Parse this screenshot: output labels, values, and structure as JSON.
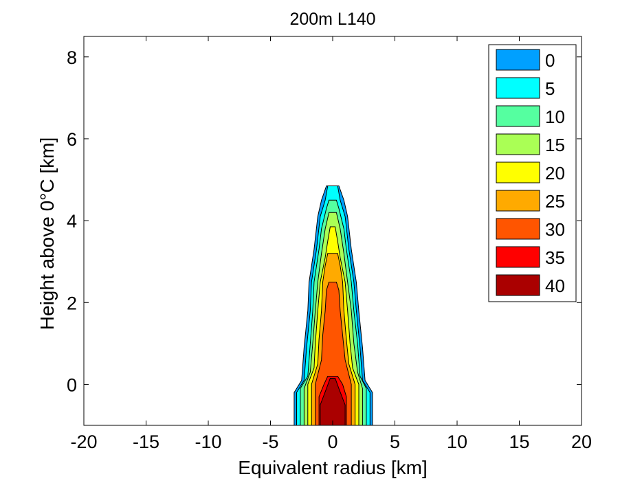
{
  "chart_data": {
    "type": "contour",
    "title": "200m L140",
    "xlabel": "Equivalent radius [km]",
    "ylabel": "Height above 0°C [km]",
    "xlim": [
      -20,
      20
    ],
    "ylim": [
      -1,
      8.5
    ],
    "x_ticks": [
      -20,
      -15,
      -10,
      -5,
      0,
      5,
      10,
      15,
      20
    ],
    "x_tick_labels": [
      "-20",
      "-15",
      "-10",
      "-5",
      "0",
      "5",
      "10",
      "15",
      "20"
    ],
    "y_ticks": [
      0,
      2,
      4,
      6,
      8
    ],
    "y_tick_labels": [
      "0",
      "2",
      "4",
      "6",
      "8"
    ],
    "grid": false,
    "legend_position": "top-right",
    "levels": [
      {
        "label": "0",
        "value": 0,
        "color": "#00A0FF"
      },
      {
        "label": "5",
        "value": 5,
        "color": "#00FFFF"
      },
      {
        "label": "10",
        "value": 10,
        "color": "#55FFA0"
      },
      {
        "label": "15",
        "value": 15,
        "color": "#AAFF55"
      },
      {
        "label": "20",
        "value": 20,
        "color": "#FFFF00"
      },
      {
        "label": "25",
        "value": 25,
        "color": "#FFAA00"
      },
      {
        "label": "30",
        "value": 30,
        "color": "#FF5500"
      },
      {
        "label": "35",
        "value": 35,
        "color": "#FF0000"
      },
      {
        "label": "40",
        "value": 40,
        "color": "#AA0000"
      }
    ],
    "contours": [
      {
        "level": 0,
        "outline": [
          [
            -3.1,
            -1
          ],
          [
            -3.1,
            -0.2
          ],
          [
            -2.5,
            0.1
          ],
          [
            -2.3,
            0.9
          ],
          [
            -2.0,
            1.8
          ],
          [
            -1.9,
            2.5
          ],
          [
            -1.5,
            3.3
          ],
          [
            -1.2,
            4.1
          ],
          [
            -0.9,
            4.5
          ],
          [
            -0.5,
            4.85
          ],
          [
            0.5,
            4.85
          ],
          [
            0.9,
            4.5
          ],
          [
            1.2,
            4.1
          ],
          [
            1.5,
            3.3
          ],
          [
            1.9,
            2.5
          ],
          [
            2.1,
            1.8
          ],
          [
            2.4,
            0.9
          ],
          [
            2.6,
            0.1
          ],
          [
            3.2,
            -0.2
          ],
          [
            3.2,
            -1
          ]
        ]
      },
      {
        "level": 5,
        "outline": [
          [
            -2.9,
            -1
          ],
          [
            -2.9,
            -0.2
          ],
          [
            -2.3,
            0.1
          ],
          [
            -2.1,
            0.9
          ],
          [
            -1.8,
            1.8
          ],
          [
            -1.7,
            2.5
          ],
          [
            -1.3,
            3.3
          ],
          [
            -1.0,
            4.1
          ],
          [
            -0.6,
            4.5
          ],
          [
            -0.4,
            4.85
          ],
          [
            0.4,
            4.85
          ],
          [
            0.6,
            4.5
          ],
          [
            1.0,
            4.1
          ],
          [
            1.3,
            3.3
          ],
          [
            1.7,
            2.5
          ],
          [
            1.9,
            1.8
          ],
          [
            2.2,
            0.9
          ],
          [
            2.4,
            0.1
          ],
          [
            3.0,
            -0.2
          ],
          [
            3.0,
            -1
          ]
        ]
      },
      {
        "level": 10,
        "outline": [
          [
            -2.6,
            -1
          ],
          [
            -2.6,
            -0.1
          ],
          [
            -2.0,
            0.2
          ],
          [
            -1.8,
            1.0
          ],
          [
            -1.6,
            1.8
          ],
          [
            -1.5,
            2.5
          ],
          [
            -1.1,
            3.3
          ],
          [
            -0.9,
            3.8
          ],
          [
            -0.5,
            4.3
          ],
          [
            -0.3,
            4.5
          ],
          [
            0.3,
            4.5
          ],
          [
            0.5,
            4.3
          ],
          [
            0.9,
            3.8
          ],
          [
            1.1,
            3.3
          ],
          [
            1.5,
            2.5
          ],
          [
            1.7,
            1.8
          ],
          [
            2.0,
            1.0
          ],
          [
            2.2,
            0.2
          ],
          [
            2.7,
            -0.1
          ],
          [
            2.7,
            -1
          ]
        ]
      },
      {
        "level": 15,
        "outline": [
          [
            -2.3,
            -1
          ],
          [
            -2.3,
            -0.1
          ],
          [
            -1.8,
            0.3
          ],
          [
            -1.6,
            1.0
          ],
          [
            -1.4,
            1.8
          ],
          [
            -1.2,
            2.5
          ],
          [
            -0.9,
            3.2
          ],
          [
            -0.6,
            3.8
          ],
          [
            -0.3,
            4.2
          ],
          [
            0.3,
            4.2
          ],
          [
            0.6,
            3.8
          ],
          [
            0.9,
            3.2
          ],
          [
            1.2,
            2.5
          ],
          [
            1.5,
            1.8
          ],
          [
            1.7,
            1.0
          ],
          [
            2.0,
            0.3
          ],
          [
            2.4,
            -0.1
          ],
          [
            2.4,
            -1
          ]
        ]
      },
      {
        "level": 20,
        "outline": [
          [
            -2.0,
            -1
          ],
          [
            -2.0,
            0.0
          ],
          [
            -1.5,
            0.4
          ],
          [
            -1.4,
            1.0
          ],
          [
            -1.2,
            1.8
          ],
          [
            -1.0,
            2.5
          ],
          [
            -0.6,
            3.1
          ],
          [
            -0.4,
            3.5
          ],
          [
            -0.2,
            3.85
          ],
          [
            0.2,
            3.85
          ],
          [
            0.4,
            3.5
          ],
          [
            0.6,
            3.1
          ],
          [
            1.0,
            2.5
          ],
          [
            1.2,
            1.8
          ],
          [
            1.4,
            1.0
          ],
          [
            1.6,
            0.4
          ],
          [
            2.1,
            0.0
          ],
          [
            2.1,
            -1
          ]
        ]
      },
      {
        "level": 25,
        "outline": [
          [
            -1.7,
            -1
          ],
          [
            -1.7,
            0.0
          ],
          [
            -1.2,
            0.5
          ],
          [
            -1.1,
            1.1
          ],
          [
            -0.9,
            1.8
          ],
          [
            -0.8,
            2.5
          ],
          [
            -0.6,
            2.9
          ],
          [
            -0.4,
            3.2
          ],
          [
            0.4,
            3.2
          ],
          [
            0.6,
            2.9
          ],
          [
            0.8,
            2.5
          ],
          [
            0.9,
            1.8
          ],
          [
            1.1,
            1.1
          ],
          [
            1.3,
            0.5
          ],
          [
            1.8,
            0.0
          ],
          [
            1.8,
            -1
          ]
        ]
      },
      {
        "level": 30,
        "outline": [
          [
            -1.4,
            -1
          ],
          [
            -1.4,
            0.0
          ],
          [
            -0.9,
            0.6
          ],
          [
            -0.8,
            1.2
          ],
          [
            -0.6,
            1.8
          ],
          [
            -0.5,
            2.3
          ],
          [
            -0.3,
            2.5
          ],
          [
            0.3,
            2.5
          ],
          [
            0.5,
            2.3
          ],
          [
            0.6,
            1.8
          ],
          [
            0.8,
            1.2
          ],
          [
            1.0,
            0.6
          ],
          [
            1.5,
            0.0
          ],
          [
            1.5,
            -1
          ]
        ]
      },
      {
        "level": 35,
        "outline": [
          [
            -1.1,
            -1
          ],
          [
            -1.1,
            -0.3
          ],
          [
            -0.7,
            0.0
          ],
          [
            -0.4,
            0.2
          ],
          [
            0.4,
            0.2
          ],
          [
            0.8,
            0.0
          ],
          [
            1.1,
            -0.3
          ],
          [
            1.1,
            -1
          ]
        ]
      },
      {
        "level": 40,
        "outline": [
          [
            -1.0,
            -1
          ],
          [
            -1.0,
            -0.5
          ],
          [
            -0.5,
            -0.1
          ],
          [
            -0.2,
            0.15
          ],
          [
            0.2,
            0.15
          ],
          [
            0.5,
            -0.1
          ],
          [
            1.0,
            -0.5
          ],
          [
            1.0,
            -1
          ]
        ]
      }
    ]
  }
}
